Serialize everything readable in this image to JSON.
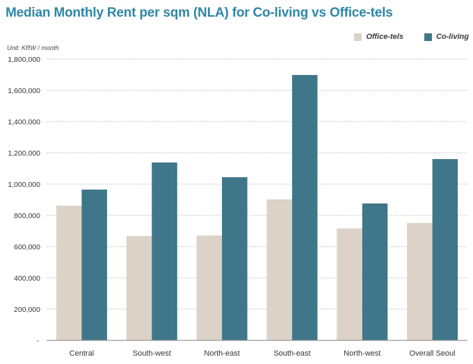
{
  "chart_data": {
    "type": "bar",
    "title": "Median Monthly Rent per sqm (NLA) for Co-living vs Office-tels",
    "unit_note": "Unit: KRW / month",
    "xlabel": "",
    "ylabel": "",
    "categories": [
      "Central",
      "South-west",
      "North-east",
      "South-east",
      "North-west",
      "Overall Seoul"
    ],
    "series": [
      {
        "name": "Office-tels",
        "color": "#ddd2c7",
        "values": [
          862000,
          667000,
          671000,
          902000,
          716000,
          751000
        ]
      },
      {
        "name": "Co-living",
        "color": "#3f7689",
        "values": [
          965000,
          1138000,
          1044000,
          1698000,
          876000,
          1160000
        ]
      }
    ],
    "ylim": [
      0,
      1800000
    ],
    "yticks": [
      0,
      200000,
      400000,
      600000,
      800000,
      1000000,
      1200000,
      1400000,
      1600000,
      1800000
    ],
    "ytick_labels": [
      "-",
      "200,000",
      "400,000",
      "600,000",
      "800,000",
      "1,000,000",
      "1,200,000",
      "1,400,000",
      "1,600,000",
      "1,800,000"
    ],
    "grid": true,
    "legend_position": "top-right"
  }
}
